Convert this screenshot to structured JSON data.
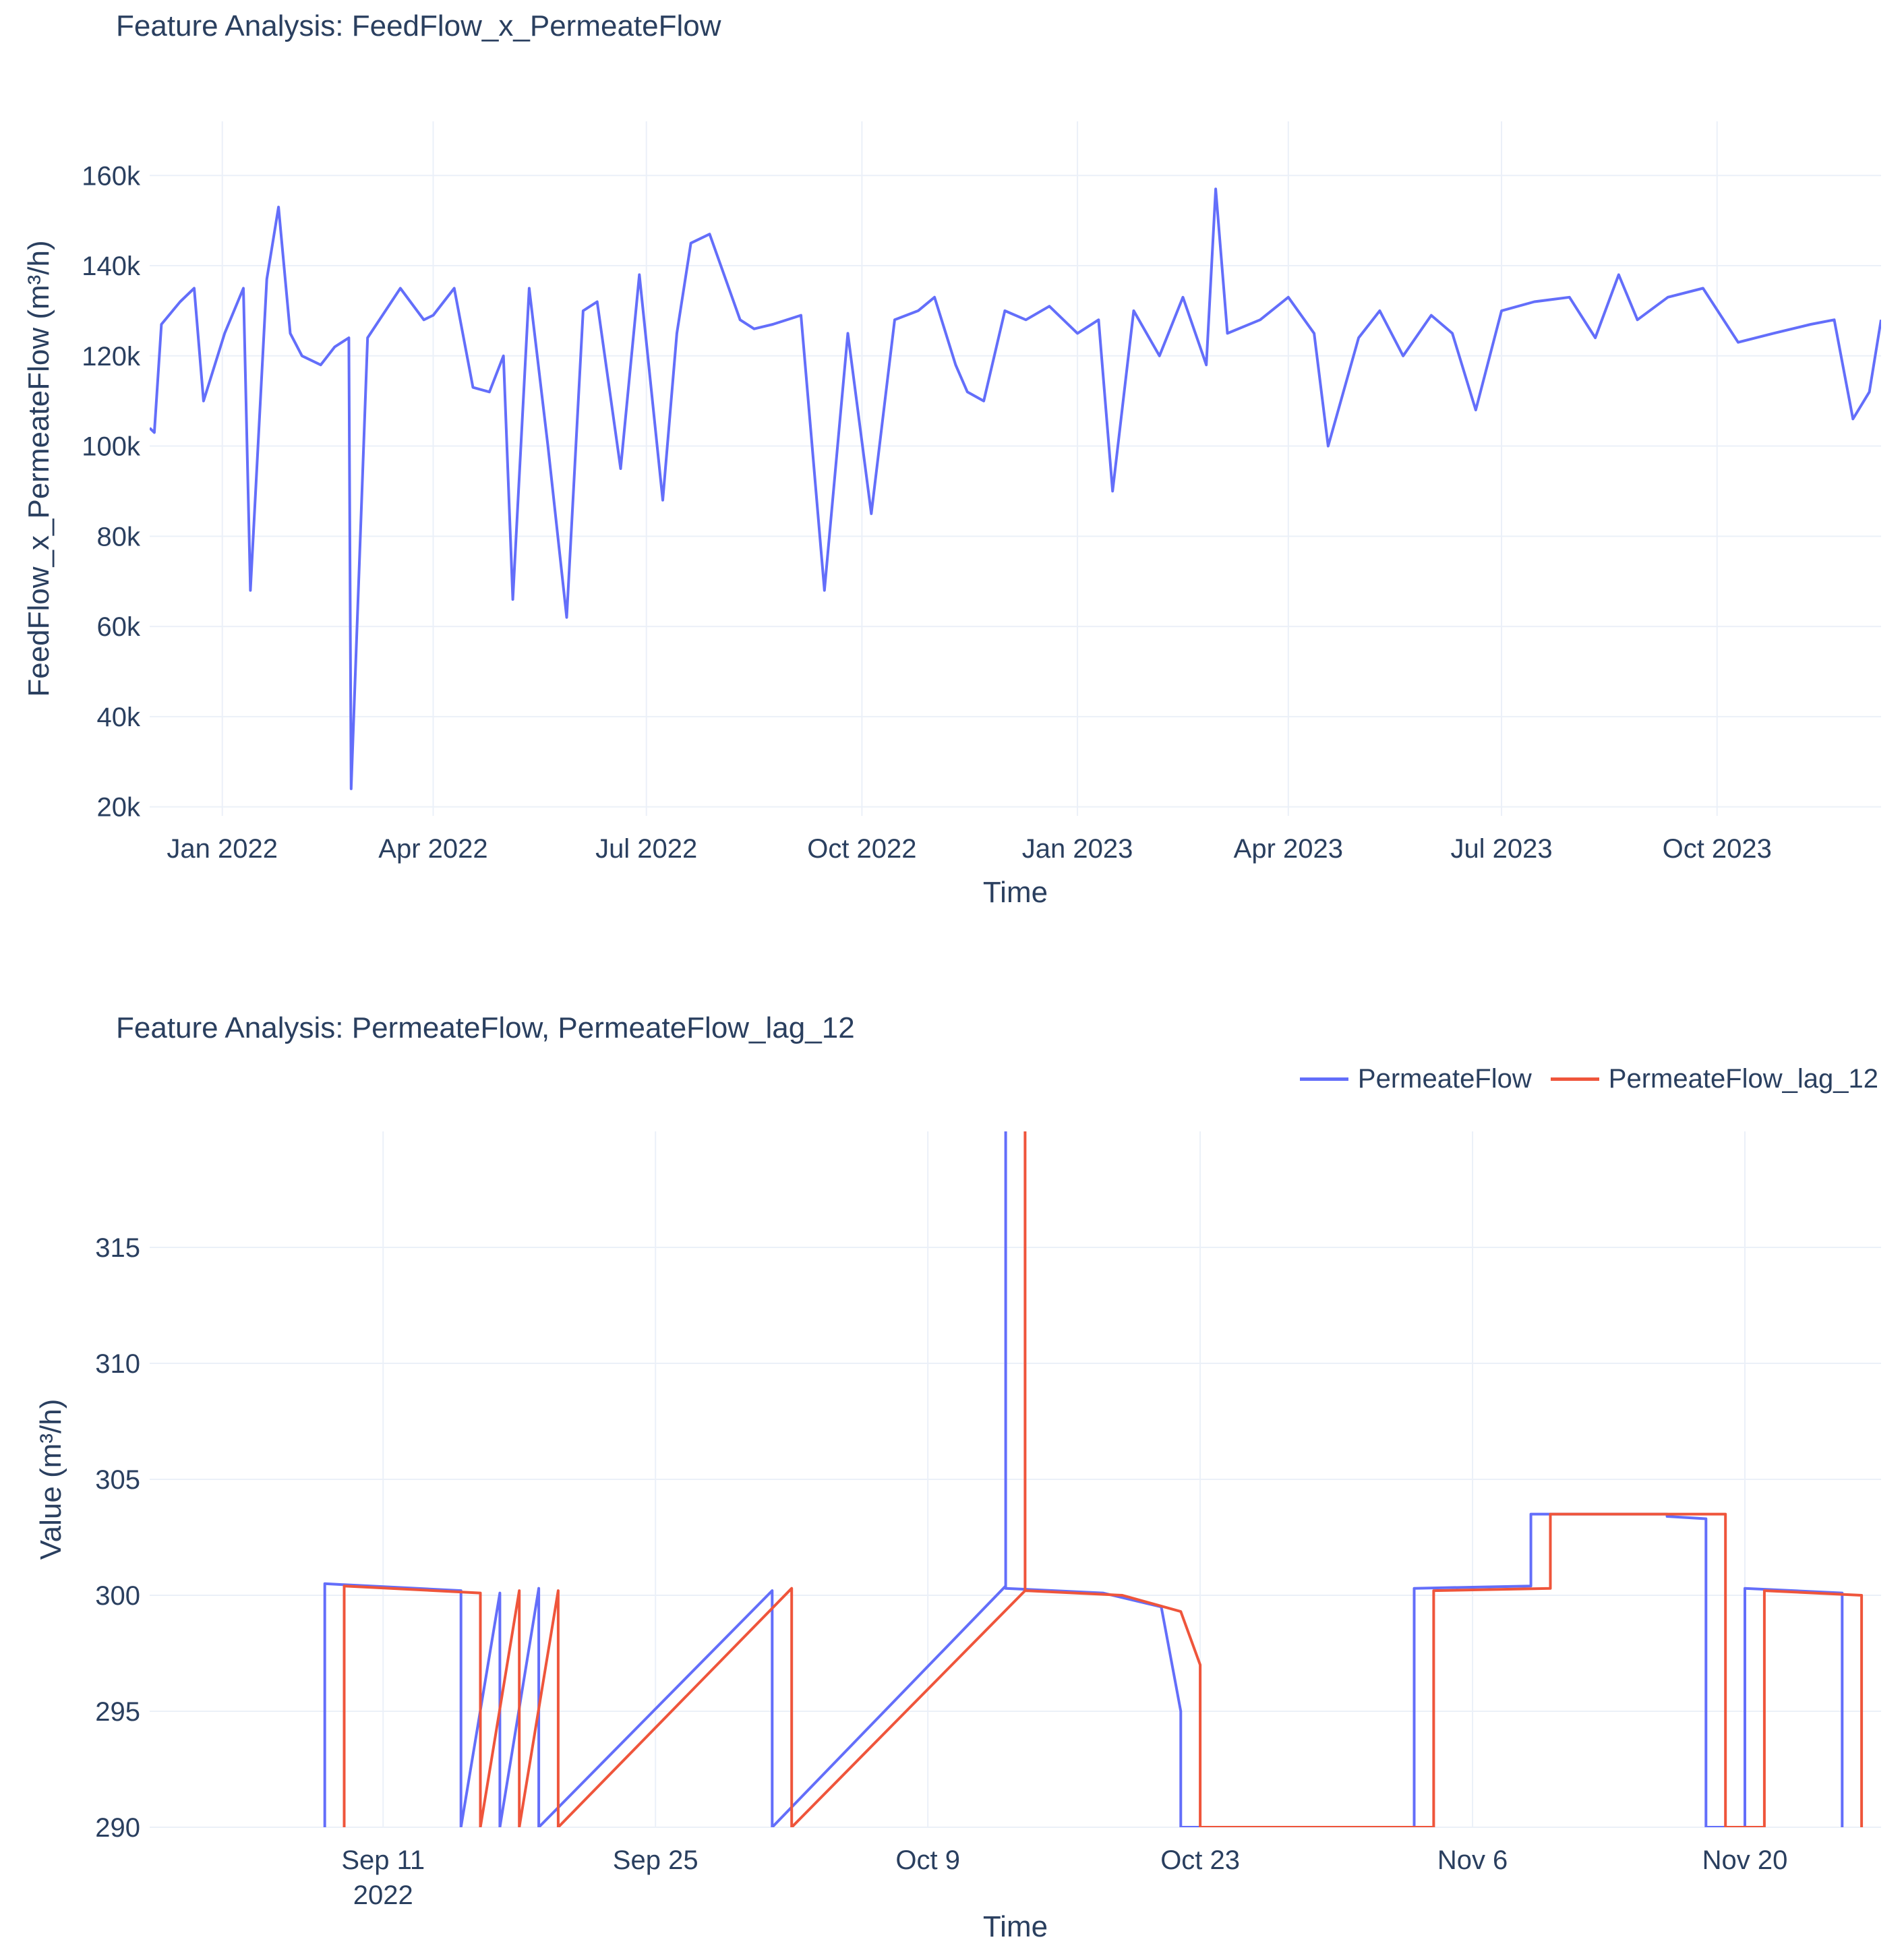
{
  "chart_data": [
    {
      "type": "line",
      "title": "Feature Analysis: FeedFlow_x_PermeateFlow",
      "xlabel": "Time",
      "ylabel": "FeedFlow_x_PermeateFlow (m³/h)",
      "ylim": [
        18000,
        172000
      ],
      "xlim": [
        "2021-12-01",
        "2023-12-10"
      ],
      "grid": true,
      "y_ticks": [
        20000,
        40000,
        60000,
        80000,
        100000,
        120000,
        140000,
        160000
      ],
      "y_tick_labels": [
        "20k",
        "40k",
        "60k",
        "80k",
        "100k",
        "120k",
        "140k",
        "160k"
      ],
      "x_ticks": [
        "2022-01-01",
        "2022-04-01",
        "2022-07-01",
        "2022-10-01",
        "2023-01-01",
        "2023-04-01",
        "2023-07-01",
        "2023-10-01"
      ],
      "x_tick_labels": [
        "Jan 2022",
        "Apr 2022",
        "Jul 2022",
        "Oct 2022",
        "Jan 2023",
        "Apr 2023",
        "Jul 2023",
        "Oct 2023"
      ],
      "series": [
        {
          "color": "#636efa",
          "x": [
            "2021-12-01",
            "2021-12-03",
            "2021-12-06",
            "2021-12-14",
            "2021-12-20",
            "2021-12-24",
            "2022-01-02",
            "2022-01-10",
            "2022-01-13",
            "2022-01-20",
            "2022-01-25",
            "2022-01-30",
            "2022-02-04",
            "2022-02-12",
            "2022-02-18",
            "2022-02-24",
            "2022-02-25",
            "2022-03-04",
            "2022-03-18",
            "2022-03-28",
            "2022-04-01",
            "2022-04-10",
            "2022-04-18",
            "2022-04-25",
            "2022-05-01",
            "2022-05-05",
            "2022-05-12",
            "2022-05-20",
            "2022-05-28",
            "2022-06-04",
            "2022-06-10",
            "2022-06-20",
            "2022-06-28",
            "2022-07-08",
            "2022-07-14",
            "2022-07-20",
            "2022-07-28",
            "2022-08-10",
            "2022-08-16",
            "2022-08-24",
            "2022-09-05",
            "2022-09-15",
            "2022-09-25",
            "2022-10-05",
            "2022-10-15",
            "2022-10-25",
            "2022-11-01",
            "2022-11-10",
            "2022-11-15",
            "2022-11-22",
            "2022-12-01",
            "2022-12-10",
            "2022-12-20",
            "2023-01-01",
            "2023-01-10",
            "2023-01-16",
            "2023-01-25",
            "2023-02-05",
            "2023-02-15",
            "2023-02-25",
            "2023-03-01",
            "2023-03-06",
            "2023-03-20",
            "2023-04-01",
            "2023-04-12",
            "2023-04-18",
            "2023-05-01",
            "2023-05-10",
            "2023-05-20",
            "2023-06-01",
            "2023-06-10",
            "2023-06-20",
            "2023-07-01",
            "2023-07-15",
            "2023-07-30",
            "2023-08-10",
            "2023-08-20",
            "2023-08-28",
            "2023-09-10",
            "2023-09-25",
            "2023-10-10",
            "2023-10-25",
            "2023-11-10",
            "2023-11-20",
            "2023-11-28",
            "2023-12-05",
            "2023-12-10"
          ],
          "values": [
            104000,
            103000,
            127000,
            132000,
            135000,
            110000,
            125000,
            135000,
            68000,
            137000,
            153000,
            125000,
            120000,
            118000,
            122000,
            124000,
            24000,
            124000,
            135000,
            128000,
            129000,
            135000,
            113000,
            112000,
            120000,
            66000,
            135000,
            100000,
            62000,
            130000,
            132000,
            95000,
            138000,
            88000,
            125000,
            145000,
            147000,
            128000,
            126000,
            127000,
            129000,
            68000,
            125000,
            85000,
            128000,
            130000,
            133000,
            118000,
            112000,
            110000,
            130000,
            128000,
            131000,
            125000,
            128000,
            90000,
            130000,
            120000,
            133000,
            118000,
            157000,
            125000,
            128000,
            133000,
            125000,
            100000,
            124000,
            130000,
            120000,
            129000,
            125000,
            108000,
            130000,
            132000,
            133000,
            124000,
            138000,
            128000,
            133000,
            135000,
            123000,
            125000,
            127000,
            128000,
            106000,
            112000,
            128000
          ]
        }
      ]
    },
    {
      "type": "line",
      "title": "Feature Analysis: PermeateFlow, PermeateFlow_lag_12",
      "xlabel": "Time",
      "ylabel": "Value (m³/h)",
      "ylim": [
        290,
        320
      ],
      "xlim": [
        "2022-08-30",
        "2022-11-27"
      ],
      "grid": true,
      "legend_position": "top-right",
      "y_ticks": [
        290,
        295,
        300,
        305,
        310,
        315
      ],
      "y_tick_labels": [
        "290",
        "295",
        "300",
        "305",
        "310",
        "315"
      ],
      "x_ticks": [
        "2022-09-11",
        "2022-09-25",
        "2022-10-09",
        "2022-10-23",
        "2022-11-06",
        "2022-11-20"
      ],
      "x_tick_labels": [
        "Sep 11",
        "Sep 25",
        "Oct 9",
        "Oct 23",
        "Nov 6",
        "Nov 20"
      ],
      "x_tick_sublabel": "2022",
      "series": [
        {
          "name": "PermeateFlow",
          "color": "#636efa",
          "x": [
            "2022-09-08",
            "2022-09-08",
            "2022-09-15",
            "2022-09-15",
            "2022-09-17",
            "2022-09-17",
            "2022-09-19",
            "2022-09-19",
            "2022-10-01",
            "2022-10-01",
            "2022-10-13",
            "2022-10-13",
            "2022-10-13",
            "2022-10-13",
            "2022-10-18",
            "2022-10-21",
            "2022-10-22",
            "2022-10-22",
            "2022-11-03",
            "2022-11-03",
            "2022-11-09",
            "2022-11-09",
            "2022-11-16",
            "2022-11-16",
            "2022-11-18",
            "2022-11-18",
            "2022-11-20",
            "2022-11-20",
            "2022-11-25",
            "2022-11-25"
          ],
          "values": [
            290,
            300.5,
            300.2,
            290,
            300.1,
            290,
            300.3,
            290,
            300.2,
            290,
            300.4,
            320,
            320,
            300.3,
            300.1,
            299.5,
            295,
            290,
            290,
            300.3,
            300.4,
            303.5,
            303.5,
            303.4,
            303.3,
            290,
            290,
            300.3,
            300.1,
            290
          ]
        },
        {
          "name": "PermeateFlow_lag_12",
          "color": "#ef553b",
          "x": [
            "2022-09-09",
            "2022-09-09",
            "2022-09-16",
            "2022-09-16",
            "2022-09-18",
            "2022-09-18",
            "2022-09-20",
            "2022-09-20",
            "2022-10-02",
            "2022-10-02",
            "2022-10-14",
            "2022-10-14",
            "2022-10-14",
            "2022-10-14",
            "2022-10-19",
            "2022-10-22",
            "2022-10-23",
            "2022-10-23",
            "2022-11-04",
            "2022-11-04",
            "2022-11-10",
            "2022-11-10",
            "2022-11-17",
            "2022-11-17",
            "2022-11-19",
            "2022-11-19",
            "2022-11-21",
            "2022-11-21",
            "2022-11-26",
            "2022-11-26"
          ],
          "values": [
            290,
            300.4,
            300.1,
            290,
            300.2,
            290,
            300.2,
            290,
            300.3,
            290,
            300.2,
            320,
            320,
            300.2,
            300.0,
            299.3,
            297,
            290,
            290,
            300.2,
            300.3,
            303.5,
            303.5,
            303.5,
            303.5,
            290,
            290,
            300.2,
            300.0,
            290
          ]
        }
      ]
    }
  ]
}
